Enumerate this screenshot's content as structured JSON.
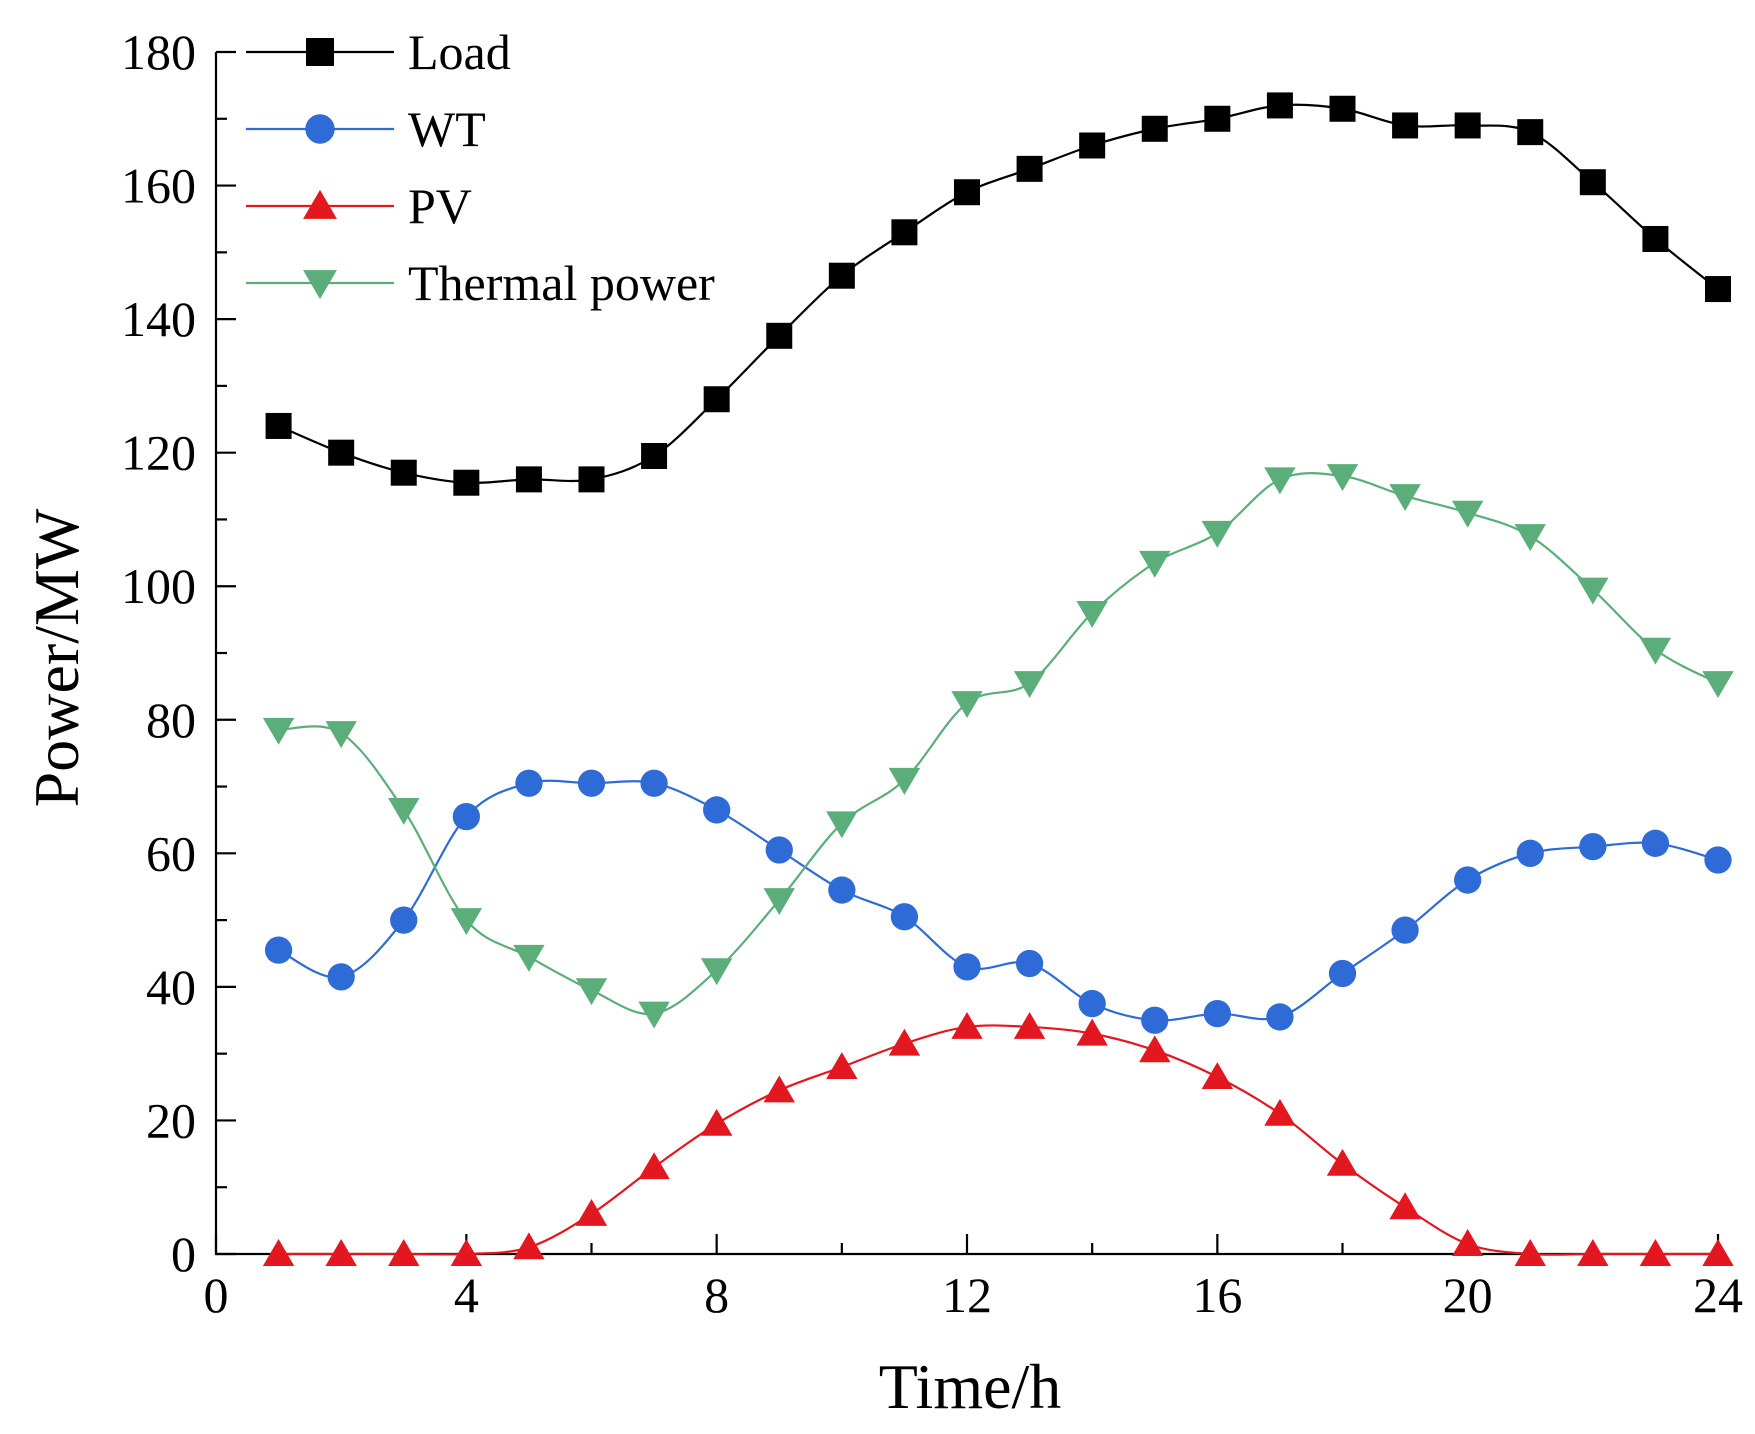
{
  "chart_data": {
    "type": "line",
    "title": "",
    "xlabel": "Time/h",
    "ylabel": "Power/MW",
    "xlim": [
      0,
      24
    ],
    "ylim": [
      0,
      180
    ],
    "xticks": [
      0,
      4,
      8,
      12,
      16,
      20,
      24
    ],
    "yticks": [
      0,
      20,
      40,
      60,
      80,
      100,
      120,
      140,
      160,
      180
    ],
    "xtick_labels": [
      "0",
      "4",
      "8",
      "12",
      "16",
      "20",
      "24"
    ],
    "ytick_labels": [
      "0",
      "20",
      "40",
      "60",
      "80",
      "100",
      "120",
      "140",
      "160",
      "180"
    ],
    "grid": false,
    "legend_position": "top-left",
    "x": [
      1,
      2,
      3,
      4,
      5,
      6,
      7,
      8,
      9,
      10,
      11,
      12,
      13,
      14,
      15,
      16,
      17,
      18,
      19,
      20,
      21,
      22,
      23,
      24
    ],
    "series": [
      {
        "name": "Load",
        "color": "#000000",
        "marker": "square",
        "values": [
          124,
          120,
          117,
          115.5,
          116,
          116,
          119.5,
          128,
          137.5,
          146.5,
          153,
          159,
          162.5,
          166,
          168.5,
          170,
          172,
          171.5,
          169,
          169,
          168,
          160.5,
          152,
          144.5
        ]
      },
      {
        "name": "WT",
        "color": "#2f6bd6",
        "marker": "circle",
        "values": [
          45.5,
          41.5,
          50,
          65.5,
          70.5,
          70.5,
          70.5,
          66.5,
          60.5,
          54.5,
          50.5,
          43,
          43.5,
          37.5,
          35,
          36,
          35.5,
          42,
          48.5,
          56,
          60,
          61,
          61.5,
          59
        ]
      },
      {
        "name": "PV",
        "color": "#e3171f",
        "marker": "triangle-up",
        "values": [
          0,
          0,
          0,
          0,
          1,
          6,
          13,
          19.5,
          24.5,
          28,
          31.5,
          34,
          34,
          33,
          30.5,
          26.5,
          21,
          13.5,
          7,
          1.5,
          0,
          0,
          0,
          0
        ]
      },
      {
        "name": "Thermal power",
        "color": "#5bae7a",
        "marker": "triangle-down",
        "values": [
          78.5,
          78,
          66.5,
          50,
          44.5,
          39.5,
          36,
          42.5,
          53,
          64.5,
          71,
          82.5,
          85.5,
          96,
          103.5,
          108,
          116,
          116.5,
          113.5,
          111,
          107.5,
          99.5,
          90.5,
          85.5
        ]
      }
    ]
  }
}
